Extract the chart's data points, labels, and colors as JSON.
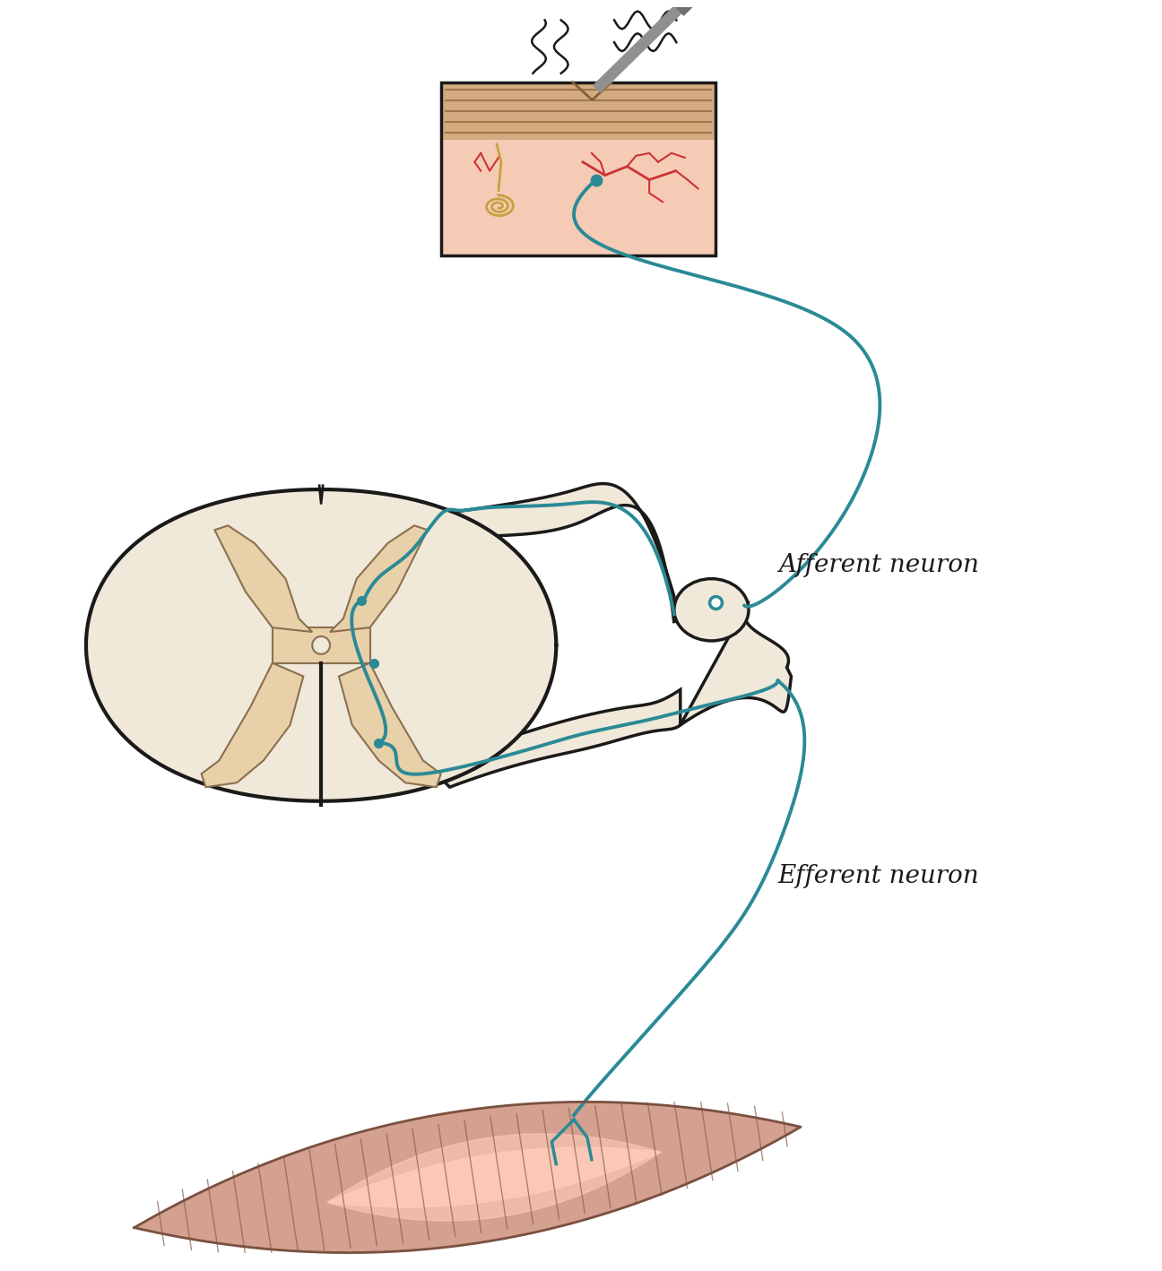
{
  "background_color": "#ffffff",
  "teal_color": "#2a8a96",
  "black_color": "#1a1a1a",
  "skin_fill": "#f2c5b5",
  "epidermis_fill": "#c8a080",
  "spinal_white": "#f0e8d8",
  "spinal_gray_matter": "#e8d0a8",
  "nerve_root_fill": "#f0e8d8",
  "muscle_fill": "#d4a090",
  "muscle_highlight": "#ffddcc",
  "vessel_color": "#cc3333",
  "ganglion_fill": "#f0e8d8",
  "afferent_label": "Afferent neuron",
  "efferent_label": "Efferent neuron",
  "label_fontsize": 20
}
